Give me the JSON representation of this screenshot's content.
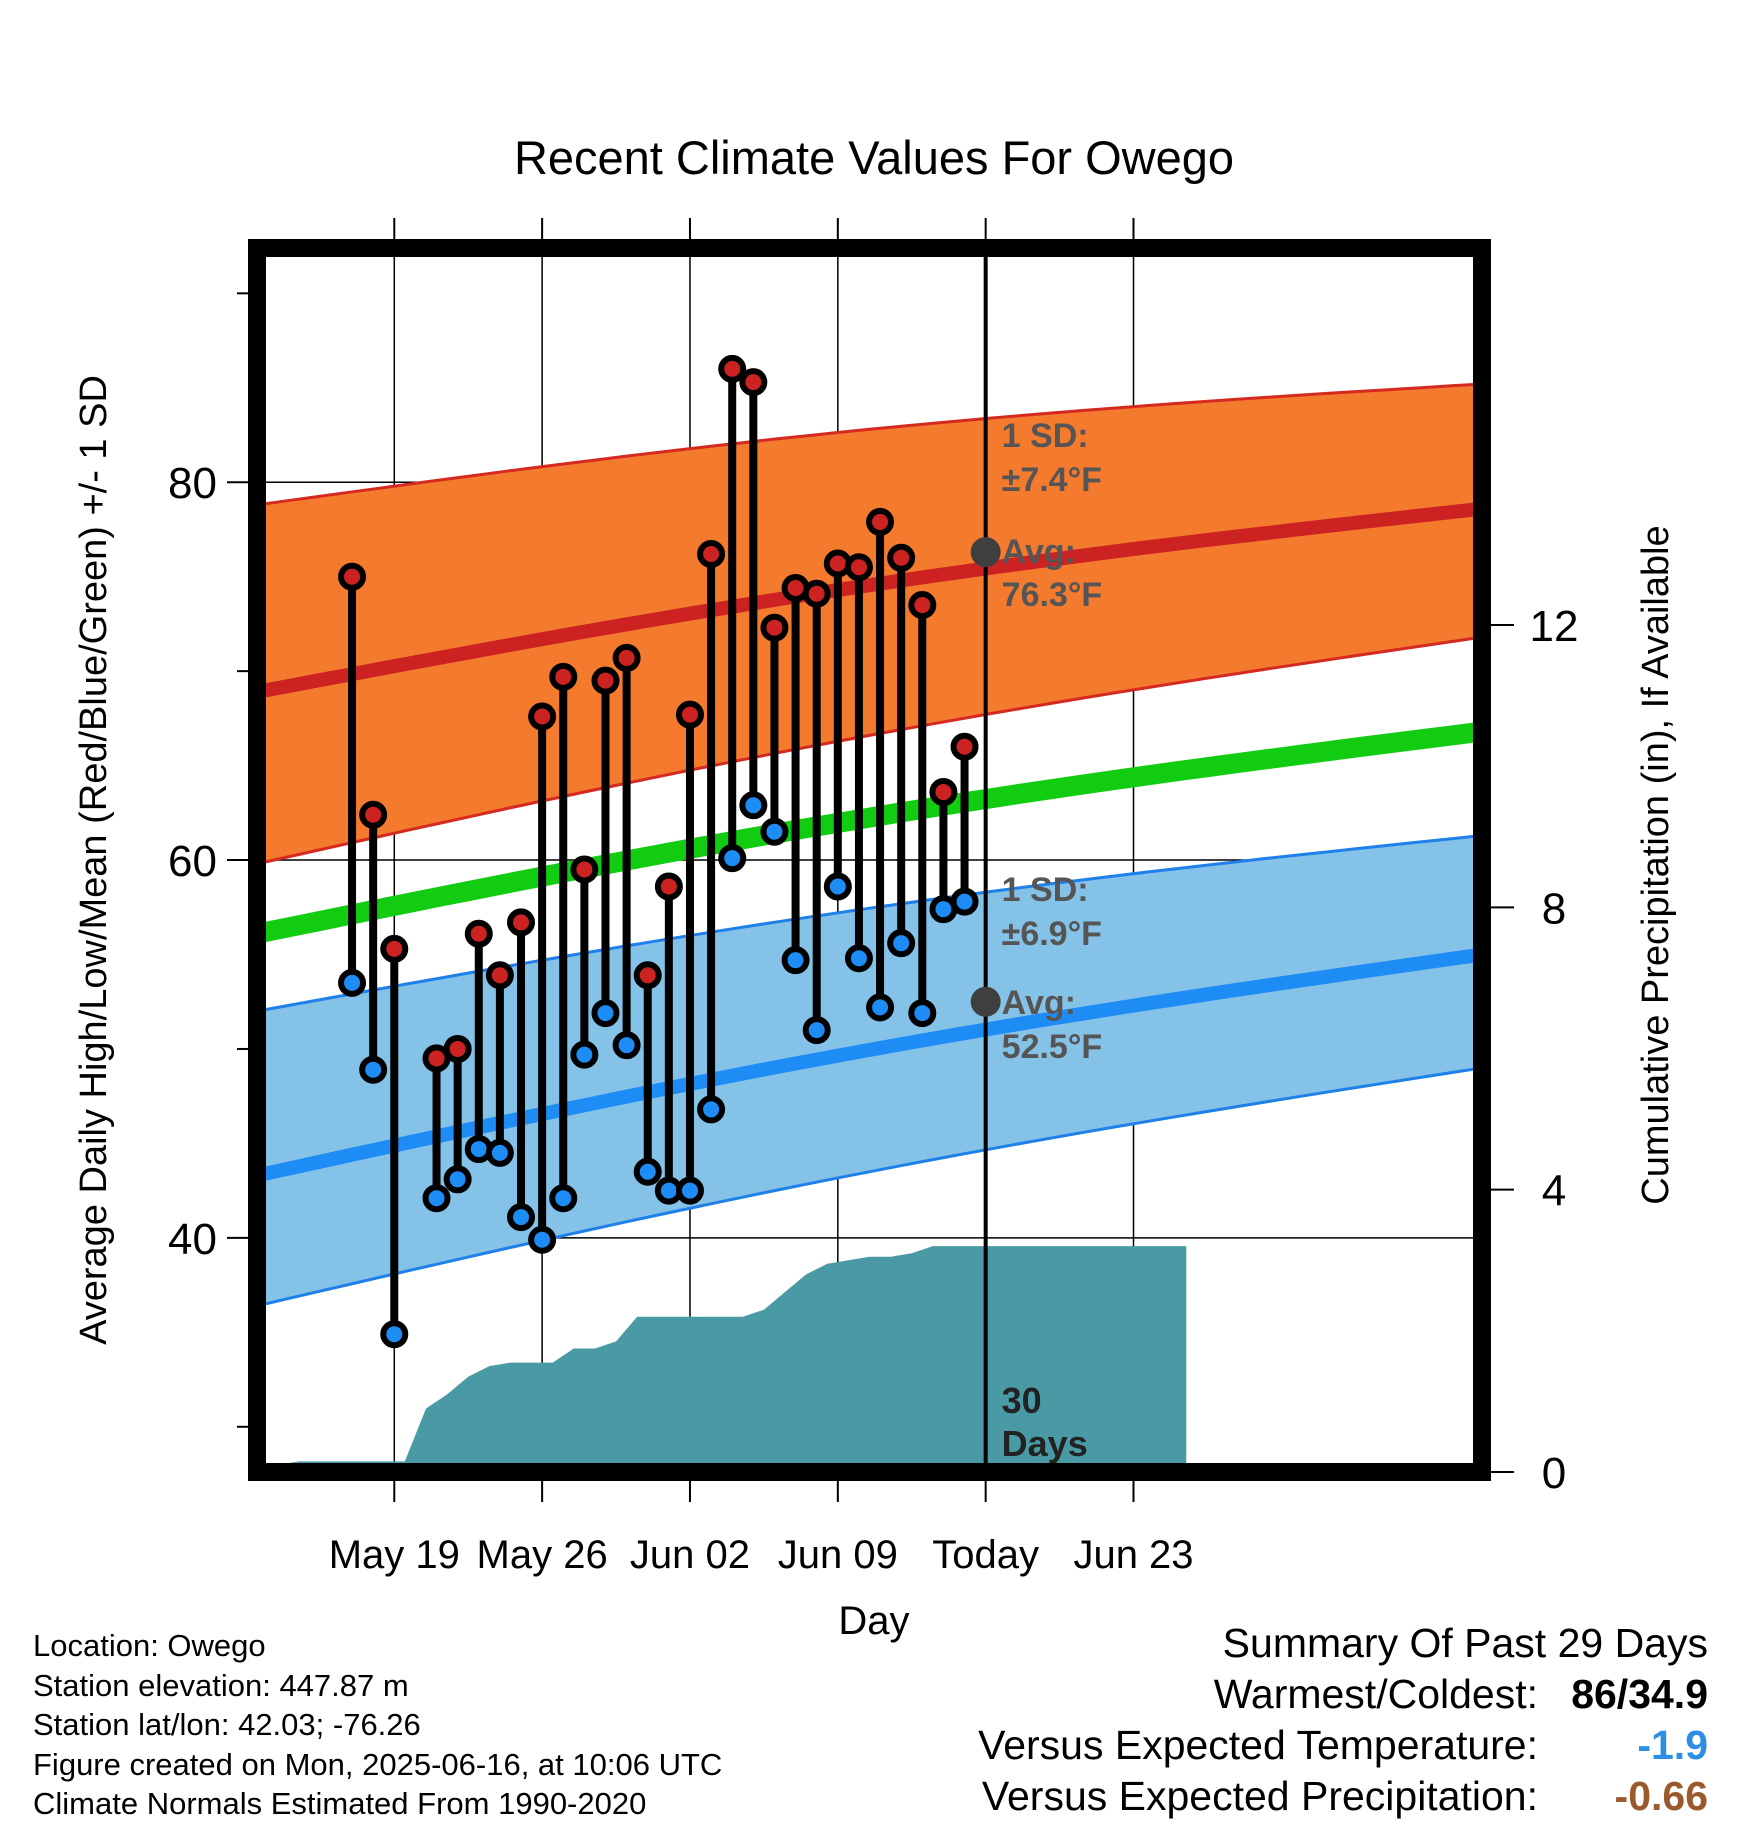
{
  "chart_data": {
    "type": "line",
    "title": "Recent Climate Values For Owego",
    "xlabel": "Day",
    "ylabel_left": "Average Daily High/Low/Mean (Red/Blue/Green) +/- 1 SD",
    "ylabel_right": "Cumulative Precipitation (in), If Available",
    "x_day_range": [
      -34.5,
      23.5
    ],
    "ylim_left": [
      27.5,
      91.5
    ],
    "ylim_right": [
      0,
      17.1
    ],
    "x_ticks": [
      {
        "day": -28,
        "label": "May 19"
      },
      {
        "day": -21,
        "label": "May 26"
      },
      {
        "day": -14,
        "label": "Jun 02"
      },
      {
        "day": -7,
        "label": "Jun 09"
      },
      {
        "day": 0,
        "label": "Today"
      },
      {
        "day": 7,
        "label": "Jun 23"
      }
    ],
    "y_ticks_left": [
      40,
      60,
      80
    ],
    "y_ticks_right": [
      0,
      4,
      8,
      12
    ],
    "grid": true,
    "today_day": 0,
    "days_label": [
      "30",
      "Days"
    ],
    "normal_high": {
      "start": 68.9,
      "end": 78.6,
      "sd_upper_start": 78.8,
      "sd_upper_end": 85.2,
      "sd_lower_start": 59.8,
      "sd_lower_end": 71.8
    },
    "normal_low": {
      "start": 43.3,
      "end": 55.0,
      "sd_upper_start": 52.0,
      "sd_upper_end": 61.3,
      "sd_lower_start": 36.4,
      "sd_lower_end": 49.0
    },
    "normal_mean": {
      "start": 56.1,
      "end": 66.8
    },
    "annotations": {
      "high_sd": "1 SD:",
      "high_sd_val": "±7.4°F",
      "high_avg": "Avg:",
      "high_avg_val": "76.3°F",
      "low_sd": "1 SD:",
      "low_sd_val": "±6.9°F",
      "low_avg": "Avg:",
      "low_avg_val": "52.5°F",
      "high_avg_today": 76.3,
      "low_avg_today": 52.5
    },
    "daily": [
      {
        "day": -30,
        "high": 75.0,
        "low": 53.5
      },
      {
        "day": -29,
        "high": 62.4,
        "low": 48.9
      },
      {
        "day": -28,
        "high": 55.3,
        "low": 34.9
      },
      {
        "day": -26,
        "high": 49.5,
        "low": 42.1
      },
      {
        "day": -25,
        "high": 50.0,
        "low": 43.1
      },
      {
        "day": -24,
        "high": 56.1,
        "low": 44.7
      },
      {
        "day": -23,
        "high": 53.9,
        "low": 44.5
      },
      {
        "day": -22,
        "high": 56.7,
        "low": 41.1
      },
      {
        "day": -21,
        "high": 67.6,
        "low": 39.9
      },
      {
        "day": -20,
        "high": 69.7,
        "low": 42.1
      },
      {
        "day": -19,
        "high": 59.5,
        "low": 49.7
      },
      {
        "day": -18,
        "high": 69.5,
        "low": 51.9
      },
      {
        "day": -17,
        "high": 70.7,
        "low": 50.2
      },
      {
        "day": -16,
        "high": 53.9,
        "low": 43.5
      },
      {
        "day": -15,
        "high": 58.6,
        "low": 42.5
      },
      {
        "day": -14,
        "high": 67.7,
        "low": 42.5
      },
      {
        "day": -13,
        "high": 76.2,
        "low": 46.8
      },
      {
        "day": -12,
        "high": 86.0,
        "low": 60.1
      },
      {
        "day": -11,
        "high": 85.3,
        "low": 62.9
      },
      {
        "day": -10,
        "high": 72.3,
        "low": 61.5
      },
      {
        "day": -9,
        "high": 74.4,
        "low": 54.7
      },
      {
        "day": -8,
        "high": 74.1,
        "low": 51.0
      },
      {
        "day": -7,
        "high": 75.7,
        "low": 58.6
      },
      {
        "day": -6,
        "high": 75.5,
        "low": 54.8
      },
      {
        "day": -5,
        "high": 77.9,
        "low": 52.2
      },
      {
        "day": -4,
        "high": 76.0,
        "low": 55.6
      },
      {
        "day": -3,
        "high": 73.5,
        "low": 51.9
      },
      {
        "day": -2,
        "high": 63.6,
        "low": 57.4
      },
      {
        "day": -1,
        "high": 66.0,
        "low": 57.8
      }
    ],
    "precip_cumulative": [
      {
        "day": -34.5,
        "value": 0.0
      },
      {
        "day": -33.5,
        "value": 0.1
      },
      {
        "day": -32.5,
        "value": 0.15
      },
      {
        "day": -31.5,
        "value": 0.15
      },
      {
        "day": -30.5,
        "value": 0.15
      },
      {
        "day": -29.5,
        "value": 0.15
      },
      {
        "day": -28.5,
        "value": 0.15
      },
      {
        "day": -27.5,
        "value": 0.15
      },
      {
        "day": -26.5,
        "value": 0.9
      },
      {
        "day": -25.5,
        "value": 1.1
      },
      {
        "day": -24.5,
        "value": 1.35
      },
      {
        "day": -23.5,
        "value": 1.5
      },
      {
        "day": -22.5,
        "value": 1.55
      },
      {
        "day": -21.5,
        "value": 1.55
      },
      {
        "day": -20.5,
        "value": 1.55
      },
      {
        "day": -19.5,
        "value": 1.75
      },
      {
        "day": -18.5,
        "value": 1.75
      },
      {
        "day": -17.5,
        "value": 1.85
      },
      {
        "day": -16.5,
        "value": 2.2
      },
      {
        "day": -15.5,
        "value": 2.2
      },
      {
        "day": -14.5,
        "value": 2.2
      },
      {
        "day": -13.5,
        "value": 2.2
      },
      {
        "day": -12.5,
        "value": 2.2
      },
      {
        "day": -11.5,
        "value": 2.2
      },
      {
        "day": -10.5,
        "value": 2.3
      },
      {
        "day": -9.5,
        "value": 2.55
      },
      {
        "day": -8.5,
        "value": 2.8
      },
      {
        "day": -7.5,
        "value": 2.95
      },
      {
        "day": -6.5,
        "value": 3.0
      },
      {
        "day": -5.5,
        "value": 3.05
      },
      {
        "day": -4.5,
        "value": 3.05
      },
      {
        "day": -3.5,
        "value": 3.1
      },
      {
        "day": -2.5,
        "value": 3.2
      },
      {
        "day": -1.5,
        "value": 3.2
      },
      {
        "day": 0.0,
        "value": 3.2
      },
      {
        "day": 9.5,
        "value": 3.2
      }
    ]
  },
  "footer": {
    "location": "Location: Owego",
    "elevation": "Station elevation: 447.87 m",
    "latlon": "Station lat/lon: 42.03; -76.26",
    "created": "Figure created on Mon, 2025-06-16, at 10:06 UTC",
    "normals": "Climate Normals Estimated From 1990-2020"
  },
  "summary": {
    "title": "Summary Of Past 29 Days",
    "warmest_label": "Warmest/Coldest:",
    "warmest_value": "86/34.9",
    "temp_label": "Versus Expected Temperature:",
    "temp_value": "-1.9",
    "precip_label": "Versus Expected Precipitation:",
    "precip_value": "-0.66",
    "temp_color": "#2e8ee6",
    "precip_color": "#9a5a2e"
  },
  "colors": {
    "high_band": "#f47a2e",
    "high_band_edge": "#d42a20",
    "high_line": "#cc2222",
    "low_band": "#85c2e8",
    "low_band_edge": "#1e80e8",
    "low_line": "#1e8cf5",
    "mean_line": "#11cc11",
    "precip": "#4a9aa5",
    "high_dot": "#cc2222",
    "low_dot": "#1e8cf5",
    "annotation": "#555555"
  }
}
